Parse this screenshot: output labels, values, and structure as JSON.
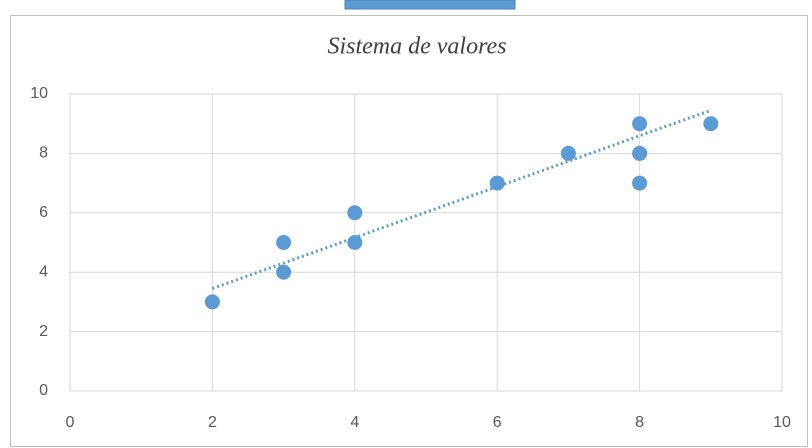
{
  "chart_data": {
    "type": "scatter",
    "title": "Sistema de valores",
    "x": [
      2,
      3,
      3,
      4,
      4,
      6,
      7,
      8,
      8,
      8,
      9
    ],
    "values": [
      3,
      5,
      4,
      6,
      5,
      7,
      8,
      9,
      8,
      7,
      9
    ],
    "color": "#5b9bd5",
    "trendline": {
      "x": [
        2,
        9
      ],
      "y": [
        3.45,
        9.45
      ]
    },
    "xlim": [
      0,
      10
    ],
    "xticks": [
      0,
      2,
      4,
      6,
      8,
      10
    ],
    "ylim": [
      0,
      10
    ],
    "yticks": [
      0,
      2,
      4,
      6,
      8,
      10
    ],
    "grid": true
  }
}
